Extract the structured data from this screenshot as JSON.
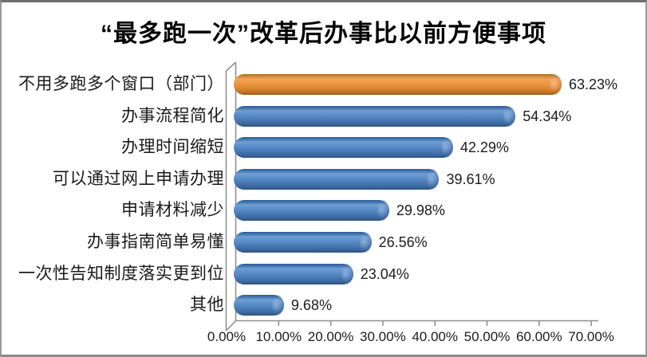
{
  "title": "“最多跑一次”改革后办事比以前方便事项",
  "chart_data": {
    "type": "bar",
    "orientation": "horizontal",
    "style": "3d-cylinder",
    "title": "“最多跑一次”改革后办事比以前方便事项",
    "categories": [
      "不用多跑多个窗口（部门）",
      "办事流程简化",
      "办理时间缩短",
      "可以通过网上申请办理",
      "申请材料减少",
      "办事指南简单易懂",
      "一次性告知制度落实更到位",
      "其他"
    ],
    "values": [
      63.23,
      54.34,
      42.29,
      39.61,
      29.98,
      26.56,
      23.04,
      9.68
    ],
    "data_labels": [
      "63.23%",
      "54.34%",
      "42.29%",
      "39.61%",
      "29.98%",
      "26.56%",
      "23.04%",
      "9.68%"
    ],
    "x_tick_labels": [
      "0.00%",
      "10.00%",
      "20.00%",
      "30.00%",
      "40.00%",
      "50.00%",
      "60.00%",
      "70.00%"
    ],
    "xlim": [
      0,
      70
    ],
    "xlabel": "",
    "ylabel": "",
    "grid": false,
    "legend": "none",
    "highlight_index": 0,
    "colors": {
      "highlight_bar": "#ED9342",
      "bar": "#4F81BD",
      "axis_line": "#909090",
      "text": "#1A1A1A",
      "background": "#FFFFFF"
    }
  }
}
